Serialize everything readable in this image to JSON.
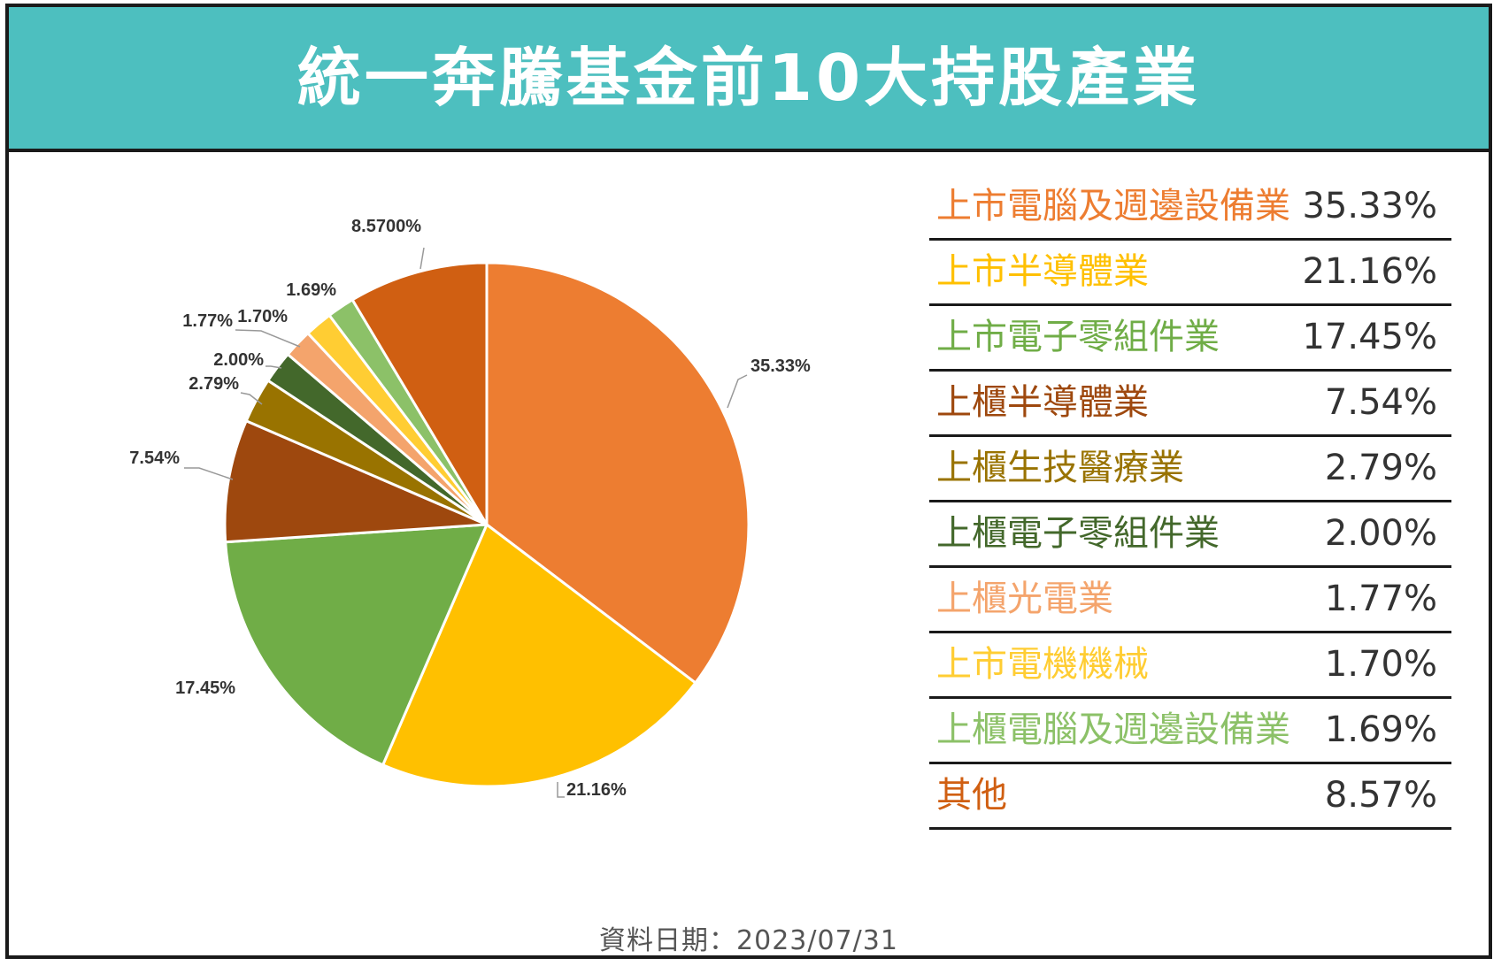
{
  "title": "統一奔騰基金前10大持股產業",
  "footnote": "資料日期：2023/07/31",
  "chart_data": {
    "type": "pie",
    "title": "統一奔騰基金前10大持股產業",
    "slices": [
      {
        "name": "上市電腦及週邊設備業",
        "value": 35.33,
        "pie_label": "35.33%",
        "legend_value": "35.33%",
        "color": "#ED7D31"
      },
      {
        "name": "上市半導體業",
        "value": 21.16,
        "pie_label": "21.16%",
        "legend_value": "21.16%",
        "color": "#FFC000"
      },
      {
        "name": "上市電子零組件業",
        "value": 17.45,
        "pie_label": "17.45%",
        "legend_value": "17.45%",
        "color": "#70AD47"
      },
      {
        "name": "上櫃半導體業",
        "value": 7.54,
        "pie_label": "7.54%",
        "legend_value": "7.54%",
        "color": "#9E480E"
      },
      {
        "name": "上櫃生技醫療業",
        "value": 2.79,
        "pie_label": "2.79%",
        "legend_value": "2.79%",
        "color": "#997300"
      },
      {
        "name": "上櫃電子零組件業",
        "value": 2.0,
        "pie_label": "2.00%",
        "legend_value": "2.00%",
        "color": "#43682B"
      },
      {
        "name": "上櫃光電業",
        "value": 1.77,
        "pie_label": "1.77%",
        "legend_value": "1.77%",
        "color": "#F4A46C"
      },
      {
        "name": "上市電機機械",
        "value": 1.7,
        "pie_label": "1.70%",
        "legend_value": "1.70%",
        "color": "#FFCD33"
      },
      {
        "name": "上櫃電腦及週邊設備業",
        "value": 1.69,
        "pie_label": "1.69%",
        "legend_value": "1.69%",
        "color": "#8CC168"
      },
      {
        "name": "其他",
        "value": 8.57,
        "pie_label": "8.5700%",
        "legend_value": "8.57%",
        "color": "#D05F12"
      }
    ],
    "legend_placement": "right"
  }
}
